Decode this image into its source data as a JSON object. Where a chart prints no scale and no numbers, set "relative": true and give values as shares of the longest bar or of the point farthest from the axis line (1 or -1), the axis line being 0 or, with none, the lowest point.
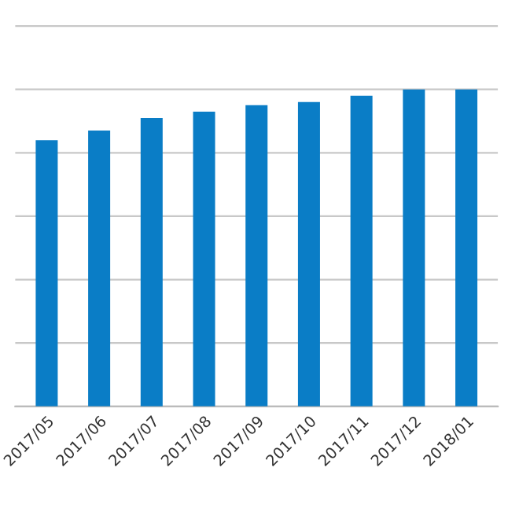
{
  "chart_data": {
    "type": "bar",
    "relative": true,
    "categories": [
      "2017/05",
      "2017/06",
      "2017/07",
      "2017/08",
      "2017/09",
      "2017/10",
      "2017/11",
      "2017/12",
      "2018/01"
    ],
    "values": [
      0.84,
      0.87,
      0.91,
      0.93,
      0.95,
      0.96,
      0.98,
      1,
      1
    ],
    "color": "#0a7dc6",
    "grid": "y"
  }
}
